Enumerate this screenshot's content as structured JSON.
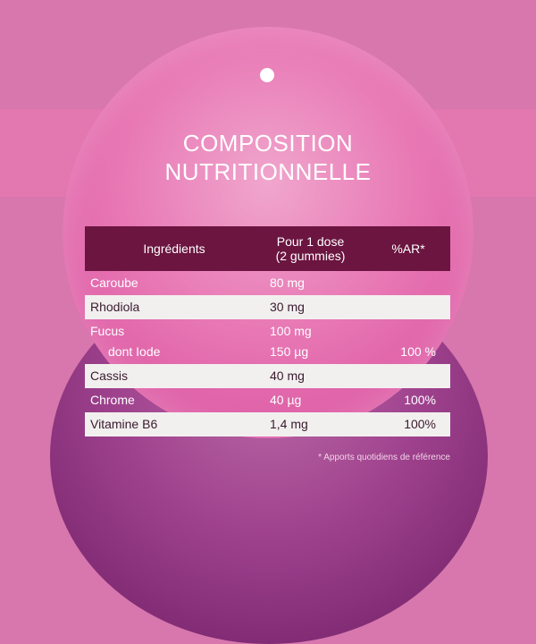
{
  "title": {
    "line1": "COMPOSITION",
    "line2": "NUTRITIONNELLE"
  },
  "table": {
    "headers": {
      "ingredients": "Ingrédients",
      "dose_line1": "Pour 1 dose",
      "dose_line2": "(2 gummies)",
      "ar": "%AR*"
    },
    "rows": [
      {
        "name": "Caroube",
        "dose": "80 mg",
        "ar": ""
      },
      {
        "name": "Rhodiola",
        "dose": "30 mg",
        "ar": ""
      },
      {
        "name": "Fucus",
        "dose": "100 mg",
        "ar": ""
      },
      {
        "name": "dont Iode",
        "dose": "150 µg",
        "ar": "100 %"
      },
      {
        "name": "Cassis",
        "dose": "40 mg",
        "ar": ""
      },
      {
        "name": "Chrome",
        "dose": "40 µg",
        "ar": "100%"
      },
      {
        "name": "Vitamine B6",
        "dose": "1,4 mg",
        "ar": "100%"
      }
    ]
  },
  "footnote": "* Apports quotidiens de référence",
  "colors": {
    "background": "#d777ad",
    "header": "#6b1540",
    "row_highlight": "#f2f0ef",
    "bubble_top": "#e878b5",
    "bubble_bottom": "#9c3f8c"
  }
}
